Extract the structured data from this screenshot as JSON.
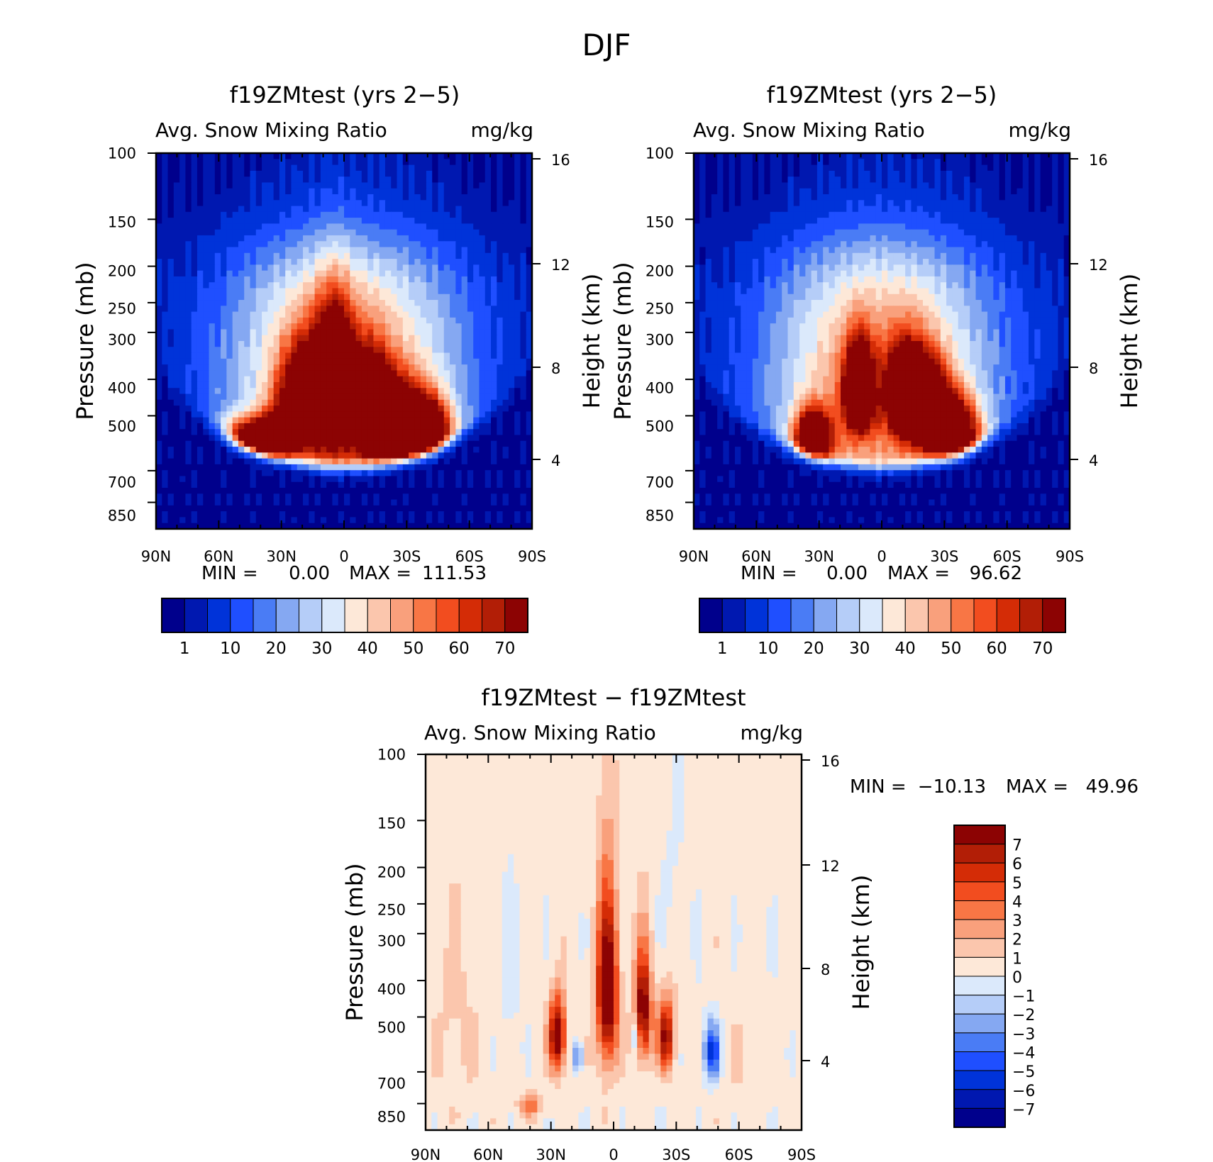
{
  "chart_data": [
    {
      "type": "heatmap",
      "figure_title": "DJF",
      "title": "f19ZMtest (yrs 2−5)",
      "variable": "Avg. Snow Mixing Ratio",
      "units": "mg/kg",
      "ylabel_left": "Pressure (mb)",
      "ylabel_right": "Height (km)",
      "x_ticks": [
        "90N",
        "60N",
        "30N",
        "0",
        "30S",
        "60S",
        "90S"
      ],
      "p_ticks": [
        "100",
        "150",
        "200",
        "250",
        "300",
        "400",
        "500",
        "700",
        "850"
      ],
      "z_ticks": [
        "16",
        "12",
        "8",
        "4"
      ],
      "min_text": "MIN =",
      "min_value": "0.00",
      "max_text": "MAX =",
      "max_value": "111.53",
      "colorbar_labels": [
        "1",
        "10",
        "20",
        "30",
        "40",
        "50",
        "60",
        "70"
      ],
      "colors": [
        "#00008c",
        "#0018b0",
        "#0033d9",
        "#1f4fff",
        "#4a7cf5",
        "#85a8f2",
        "#b5cdf8",
        "#dbe9fb",
        "#fde8d8",
        "#fbc6ad",
        "#f9a07c",
        "#f87645",
        "#f24d1f",
        "#d42c06",
        "#b21e06",
        "#8c0303"
      ],
      "features": [
        {
          "lat": -5,
          "p": 420,
          "val": 80,
          "w": 9,
          "h": 160
        },
        {
          "lat": -19,
          "p": 460,
          "val": 70,
          "w": 12,
          "h": 130
        },
        {
          "lat": -48,
          "p": 600,
          "val": 75,
          "w": 12,
          "h": 80
        },
        {
          "lat": -34,
          "p": 580,
          "val": 70,
          "w": 10,
          "h": 80
        },
        {
          "lat": 12,
          "p": 470,
          "val": 70,
          "w": 10,
          "h": 120
        },
        {
          "lat": 25,
          "p": 540,
          "val": 78,
          "w": 14,
          "h": 120
        },
        {
          "lat": 40,
          "p": 560,
          "val": 75,
          "w": 12,
          "h": 110
        }
      ],
      "envelope": {
        "peak": 42,
        "lat_width": 62,
        "p_top": 130,
        "p_bottom": 950
      }
    },
    {
      "type": "heatmap",
      "title": "f19ZMtest (yrs 2−5)",
      "variable": "Avg. Snow Mixing Ratio",
      "units": "mg/kg",
      "ylabel_left": "Pressure (mb)",
      "ylabel_right": "Height (km)",
      "x_ticks": [
        "90N",
        "60N",
        "30N",
        "0",
        "30S",
        "60S",
        "90S"
      ],
      "p_ticks": [
        "100",
        "150",
        "200",
        "250",
        "300",
        "400",
        "500",
        "700",
        "850"
      ],
      "z_ticks": [
        "16",
        "12",
        "8",
        "4"
      ],
      "min_text": "MIN =",
      "min_value": "0.00",
      "max_text": "MAX =",
      "max_value": "96.62",
      "colorbar_labels": [
        "1",
        "10",
        "20",
        "30",
        "40",
        "50",
        "60",
        "70"
      ],
      "colors": [
        "#00008c",
        "#0018b0",
        "#0033d9",
        "#1f4fff",
        "#4a7cf5",
        "#85a8f2",
        "#b5cdf8",
        "#dbe9fb",
        "#fde8d8",
        "#fbc6ad",
        "#f9a07c",
        "#f87645",
        "#f24d1f",
        "#d42c06",
        "#b21e06",
        "#8c0303"
      ],
      "features": [
        {
          "lat": -33,
          "p": 580,
          "val": 78,
          "w": 9,
          "h": 100
        },
        {
          "lat": -11,
          "p": 430,
          "val": 72,
          "w": 7,
          "h": 110
        },
        {
          "lat": 12,
          "p": 440,
          "val": 72,
          "w": 9,
          "h": 110
        },
        {
          "lat": 22,
          "p": 470,
          "val": 65,
          "w": 10,
          "h": 110
        },
        {
          "lat": 35,
          "p": 560,
          "val": 78,
          "w": 12,
          "h": 110
        }
      ],
      "envelope": {
        "peak": 40,
        "lat_width": 60,
        "p_top": 140,
        "p_bottom": 950
      }
    },
    {
      "type": "heatmap",
      "title": "f19ZMtest − f19ZMtest",
      "variable": "Avg. Snow Mixing Ratio",
      "units": "mg/kg",
      "ylabel_left": "Pressure (mb)",
      "ylabel_right": "Height (km)",
      "x_ticks": [
        "90N",
        "60N",
        "30N",
        "0",
        "30S",
        "60S",
        "90S"
      ],
      "p_ticks": [
        "100",
        "150",
        "200",
        "250",
        "300",
        "400",
        "500",
        "700",
        "850"
      ],
      "z_ticks": [
        "16",
        "12",
        "8",
        "4"
      ],
      "min_text": "MIN =",
      "min_value": "−10.13",
      "max_text": "MAX =",
      "max_value": "49.96",
      "colorbar_labels": [
        "7",
        "6",
        "5",
        "4",
        "3",
        "2",
        "1",
        "0",
        "−1",
        "−2",
        "−3",
        "−4",
        "−5",
        "−6",
        "−7"
      ],
      "colors": [
        "#8c0303",
        "#b21e06",
        "#d42c06",
        "#f24d1f",
        "#f87645",
        "#f9a07c",
        "#fbc6ad",
        "#fde8d8",
        "#dbe9fb",
        "#b5cdf8",
        "#85a8f2",
        "#4a7cf5",
        "#1f4fff",
        "#0033d9",
        "#0018b0",
        "#00008c"
      ],
      "features": [
        {
          "lat": -3,
          "p": 430,
          "val": 9,
          "w": 5,
          "h": 220
        },
        {
          "lat": -27,
          "p": 560,
          "val": 8,
          "w": 4,
          "h": 130
        },
        {
          "lat": 14,
          "p": 480,
          "val": 8,
          "w": 4,
          "h": 160
        },
        {
          "lat": 25,
          "p": 560,
          "val": 7,
          "w": 4,
          "h": 120
        },
        {
          "lat": -17,
          "p": 640,
          "val": -6,
          "w": 1.6,
          "h": 60
        },
        {
          "lat": 11,
          "p": 560,
          "val": -5,
          "w": 1.5,
          "h": 70
        },
        {
          "lat": 47,
          "p": 620,
          "val": -6,
          "w": 4,
          "h": 110
        },
        {
          "lat": -40,
          "p": 860,
          "val": 3,
          "w": 6,
          "h": 60
        },
        {
          "lat": -75,
          "p": 520,
          "val": 0.8,
          "w": 14,
          "h": 300
        },
        {
          "lat": 60,
          "p": 650,
          "val": 0.6,
          "w": 8,
          "h": 200
        },
        {
          "lat": 30,
          "p": 200,
          "val": -0.6,
          "w": 6,
          "h": 120
        },
        {
          "lat": -50,
          "p": 450,
          "val": -0.7,
          "w": 6,
          "h": 260
        }
      ],
      "envelope": {
        "peak": 0.4,
        "lat_width": 200,
        "p_top": 80,
        "p_bottom": 1000
      }
    }
  ]
}
